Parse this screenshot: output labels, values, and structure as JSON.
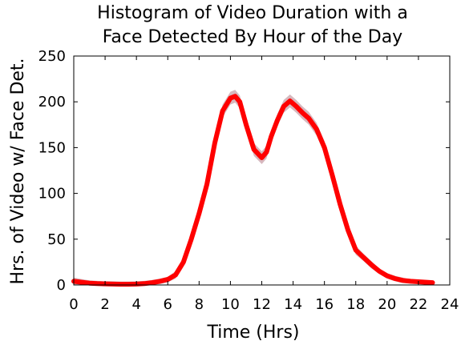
{
  "chart_data": {
    "type": "line",
    "title_lines": [
      "Histogram of Video Duration with a",
      "Face Detected By Hour of the Day"
    ],
    "xlabel": "Time (Hrs)",
    "ylabel": "Hrs. of Video w/ Face Det.",
    "xlim": [
      0,
      24
    ],
    "ylim": [
      0,
      250
    ],
    "xticks": [
      0,
      2,
      4,
      6,
      8,
      10,
      12,
      14,
      16,
      18,
      20,
      22,
      24
    ],
    "yticks": [
      0,
      50,
      100,
      150,
      200,
      250
    ],
    "grid": false,
    "legend": "none",
    "series": [
      {
        "line_color": "#ff0000",
        "band_color": "#c9a0a8",
        "x": [
          0,
          0.5,
          1,
          1.5,
          2,
          2.5,
          3,
          3.5,
          4,
          4.5,
          5,
          5.5,
          6,
          6.5,
          7,
          7.5,
          8,
          8.5,
          9,
          9.5,
          10,
          10.3,
          10.6,
          11,
          11.5,
          12,
          12.3,
          12.6,
          13,
          13.4,
          13.8,
          14.2,
          14.6,
          15,
          15.5,
          16,
          16.5,
          17,
          17.5,
          18,
          18.5,
          19,
          19.5,
          20,
          20.5,
          21,
          21.5,
          22,
          22.5,
          22.9
        ],
        "y": [
          4,
          3,
          2,
          1.5,
          1.2,
          1,
          0.8,
          0.8,
          1,
          1.5,
          2.5,
          4,
          6,
          11,
          25,
          50,
          78,
          110,
          155,
          190,
          204,
          206,
          200,
          175,
          148,
          139,
          145,
          162,
          180,
          195,
          201,
          195,
          188,
          182,
          170,
          150,
          120,
          88,
          60,
          38,
          30,
          22,
          15,
          10,
          7,
          5,
          4,
          3.5,
          3,
          2.5
        ],
        "band": [
          4,
          3.5,
          3,
          3,
          3,
          3,
          3,
          3,
          3,
          3,
          3,
          3,
          3,
          4,
          5,
          6,
          6,
          7,
          7,
          7,
          7,
          7,
          7,
          7,
          7,
          7,
          7,
          7,
          7,
          7,
          7,
          7,
          7,
          7,
          7,
          7,
          7,
          7,
          6,
          5,
          4,
          4,
          3,
          3,
          3,
          3,
          2,
          2,
          2,
          2
        ]
      }
    ]
  }
}
